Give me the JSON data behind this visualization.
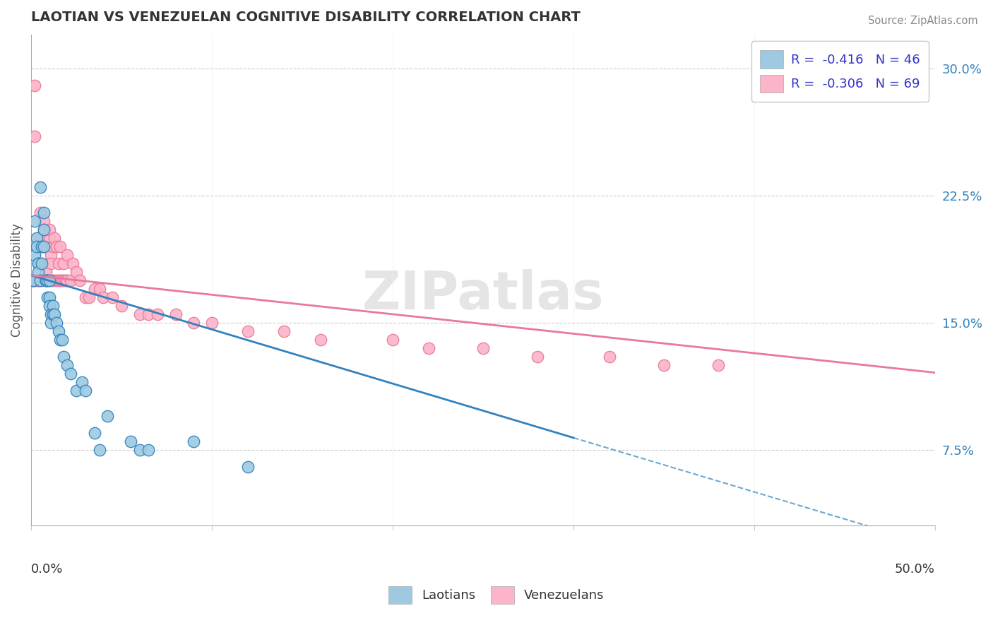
{
  "title": "LAOTIAN VS VENEZUELAN COGNITIVE DISABILITY CORRELATION CHART",
  "source": "Source: ZipAtlas.com",
  "ylabel": "Cognitive Disability",
  "y_ticks": [
    0.075,
    0.15,
    0.225,
    0.3
  ],
  "y_tick_labels": [
    "7.5%",
    "15.0%",
    "22.5%",
    "30.0%"
  ],
  "xlim": [
    0.0,
    0.5
  ],
  "ylim": [
    0.03,
    0.32
  ],
  "color_blue": "#9ecae1",
  "color_pink": "#fbb4c8",
  "color_blue_line": "#3182bd",
  "color_pink_line": "#e8799a",
  "laotian_x": [
    0.001,
    0.001,
    0.002,
    0.002,
    0.003,
    0.003,
    0.004,
    0.004,
    0.004,
    0.005,
    0.005,
    0.006,
    0.006,
    0.007,
    0.007,
    0.007,
    0.008,
    0.008,
    0.009,
    0.009,
    0.01,
    0.01,
    0.01,
    0.011,
    0.011,
    0.012,
    0.012,
    0.013,
    0.014,
    0.015,
    0.016,
    0.017,
    0.018,
    0.02,
    0.022,
    0.025,
    0.028,
    0.03,
    0.035,
    0.038,
    0.042,
    0.055,
    0.06,
    0.065,
    0.09,
    0.12
  ],
  "laotian_y": [
    0.175,
    0.175,
    0.21,
    0.19,
    0.2,
    0.195,
    0.185,
    0.185,
    0.18,
    0.175,
    0.23,
    0.185,
    0.195,
    0.215,
    0.205,
    0.195,
    0.175,
    0.175,
    0.175,
    0.165,
    0.175,
    0.165,
    0.16,
    0.155,
    0.15,
    0.16,
    0.155,
    0.155,
    0.15,
    0.145,
    0.14,
    0.14,
    0.13,
    0.125,
    0.12,
    0.11,
    0.115,
    0.11,
    0.085,
    0.075,
    0.095,
    0.08,
    0.075,
    0.075,
    0.08,
    0.065
  ],
  "venezuelan_x": [
    0.001,
    0.001,
    0.002,
    0.002,
    0.003,
    0.003,
    0.004,
    0.004,
    0.005,
    0.005,
    0.005,
    0.006,
    0.006,
    0.007,
    0.007,
    0.007,
    0.008,
    0.008,
    0.009,
    0.009,
    0.01,
    0.01,
    0.01,
    0.011,
    0.011,
    0.011,
    0.012,
    0.012,
    0.013,
    0.013,
    0.014,
    0.014,
    0.015,
    0.015,
    0.016,
    0.016,
    0.017,
    0.018,
    0.018,
    0.019,
    0.02,
    0.02,
    0.022,
    0.023,
    0.025,
    0.027,
    0.03,
    0.032,
    0.035,
    0.038,
    0.04,
    0.045,
    0.05,
    0.06,
    0.065,
    0.07,
    0.08,
    0.09,
    0.1,
    0.12,
    0.14,
    0.16,
    0.2,
    0.22,
    0.25,
    0.28,
    0.32,
    0.35,
    0.38
  ],
  "venezuelan_y": [
    0.175,
    0.175,
    0.29,
    0.26,
    0.175,
    0.175,
    0.175,
    0.175,
    0.195,
    0.2,
    0.215,
    0.175,
    0.185,
    0.195,
    0.21,
    0.205,
    0.175,
    0.18,
    0.175,
    0.175,
    0.195,
    0.2,
    0.205,
    0.175,
    0.19,
    0.185,
    0.175,
    0.195,
    0.175,
    0.2,
    0.175,
    0.195,
    0.175,
    0.185,
    0.175,
    0.195,
    0.175,
    0.175,
    0.185,
    0.175,
    0.175,
    0.19,
    0.175,
    0.185,
    0.18,
    0.175,
    0.165,
    0.165,
    0.17,
    0.17,
    0.165,
    0.165,
    0.16,
    0.155,
    0.155,
    0.155,
    0.155,
    0.15,
    0.15,
    0.145,
    0.145,
    0.14,
    0.14,
    0.135,
    0.135,
    0.13,
    0.13,
    0.125,
    0.125
  ]
}
